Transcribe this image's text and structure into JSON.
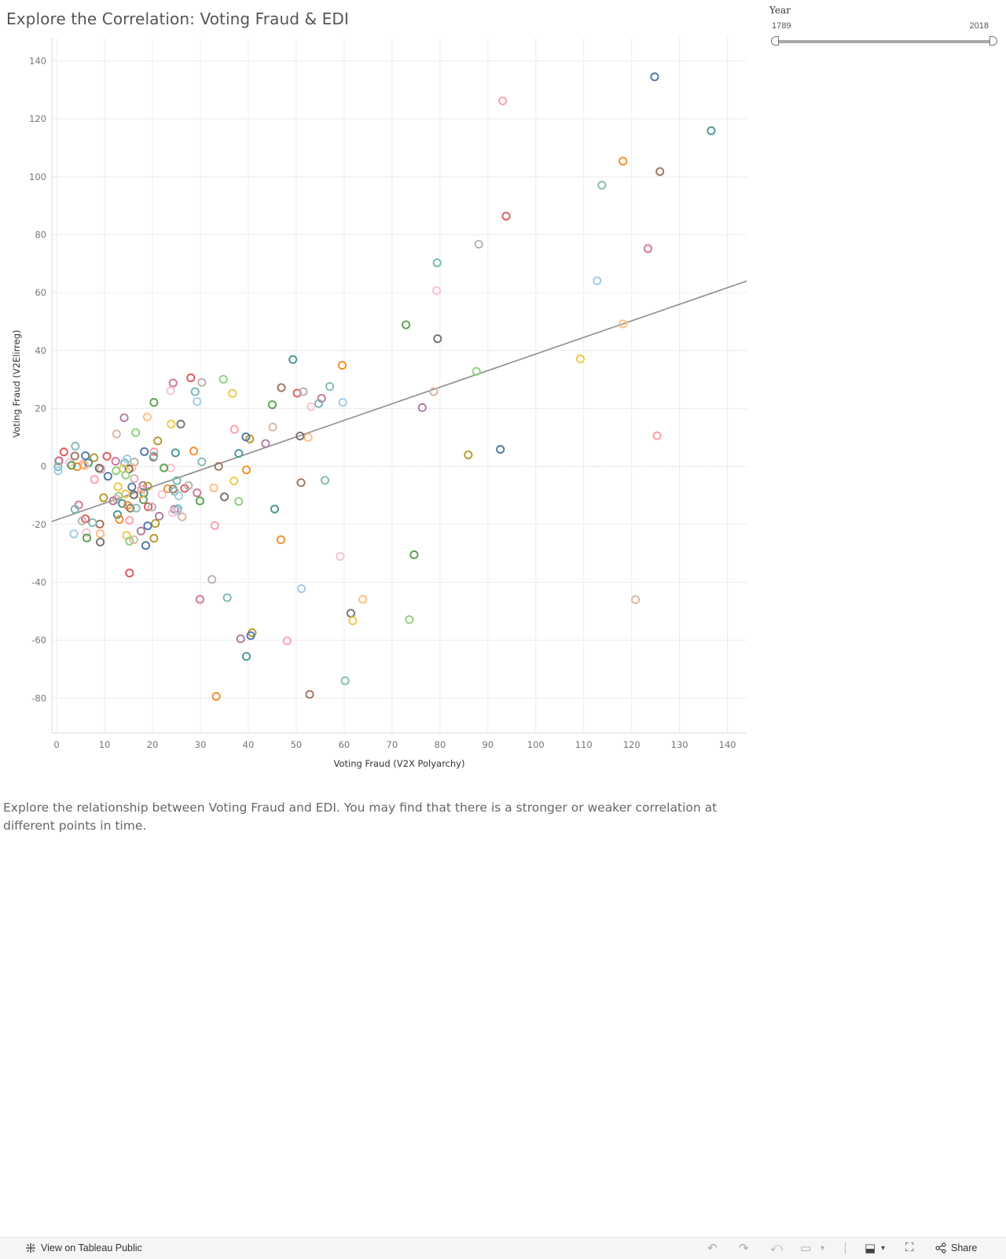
{
  "page": {
    "title": "Explore the Correlation: Voting Fraud & EDI",
    "description": "Explore the relationship between Voting Fraud and EDI. You may find that there is a stronger or weaker correlation at different points in time."
  },
  "filter": {
    "label": "Year",
    "min_label": "1789",
    "max_label": "2018",
    "range": [
      1789,
      2018
    ]
  },
  "footer": {
    "view_label": "View on Tableau Public",
    "share_label": "Share"
  },
  "chart_data": {
    "type": "scatter",
    "title": "",
    "xlabel": "Voting Fraud (V2X Polyarchy)",
    "ylabel": "Voting Fraud (V2Elirreg)",
    "xlim": [
      -1,
      144
    ],
    "ylim": [
      -92,
      148
    ],
    "xticks": [
      0,
      10,
      20,
      30,
      40,
      50,
      60,
      70,
      80,
      90,
      100,
      110,
      120,
      130,
      140
    ],
    "yticks": [
      -80,
      -60,
      -40,
      -20,
      0,
      20,
      40,
      60,
      80,
      100,
      120,
      140
    ],
    "grid": true,
    "zero_line": true,
    "trend_line": {
      "x": [
        -1,
        144
      ],
      "y": [
        -19,
        64
      ]
    },
    "palette": [
      "#4e79a7",
      "#f28e2b",
      "#e15759",
      "#76b7b2",
      "#59a14f",
      "#edc948",
      "#b07aa1",
      "#ff9da7",
      "#9c755f",
      "#bab0ac",
      "#a0cbe8",
      "#ffbe7d",
      "#8cd17d",
      "#b6992d",
      "#499894",
      "#86bcb6",
      "#d37295",
      "#fabfd2",
      "#79706e",
      "#d7b5a6"
    ],
    "points": [
      [
        124.8,
        134.5
      ],
      [
        93.1,
        126.2
      ],
      [
        136.6,
        115.9
      ],
      [
        118.2,
        105.4
      ],
      [
        125.9,
        101.8
      ],
      [
        113.8,
        97.1
      ],
      [
        93.8,
        86.4
      ],
      [
        88.1,
        76.7
      ],
      [
        123.4,
        75.2
      ],
      [
        79.4,
        70.3
      ],
      [
        112.8,
        64.1
      ],
      [
        79.3,
        60.7
      ],
      [
        72.9,
        48.9
      ],
      [
        118.2,
        49.2
      ],
      [
        79.5,
        44.1
      ],
      [
        109.3,
        37.1
      ],
      [
        87.6,
        32.8
      ],
      [
        78.7,
        25.8
      ],
      [
        76.3,
        20.3
      ],
      [
        85.9,
        4.0
      ],
      [
        92.6,
        5.9
      ],
      [
        125.3,
        10.6
      ],
      [
        49.3,
        36.9
      ],
      [
        59.6,
        34.9
      ],
      [
        46.9,
        27.2
      ],
      [
        57.0,
        27.6
      ],
      [
        50.2,
        25.3
      ],
      [
        51.5,
        25.8
      ],
      [
        55.3,
        23.5
      ],
      [
        54.7,
        21.7
      ],
      [
        59.7,
        22.1
      ],
      [
        53.1,
        20.6
      ],
      [
        45.0,
        21.3
      ],
      [
        52.5,
        10.0
      ],
      [
        50.8,
        10.5
      ],
      [
        36.7,
        25.2
      ],
      [
        34.8,
        30.1
      ],
      [
        45.1,
        13.6
      ],
      [
        43.6,
        7.9
      ],
      [
        40.3,
        9.5
      ],
      [
        39.5,
        10.2
      ],
      [
        37.1,
        12.8
      ],
      [
        38.0,
        4.5
      ],
      [
        39.6,
        -1.2
      ],
      [
        33.8,
        0.0
      ],
      [
        30.3,
        1.6
      ],
      [
        28.0,
        30.6
      ],
      [
        30.3,
        29.0
      ],
      [
        24.3,
        28.8
      ],
      [
        28.9,
        25.8
      ],
      [
        29.3,
        22.4
      ],
      [
        23.8,
        26.1
      ],
      [
        20.3,
        22.1
      ],
      [
        18.9,
        17.1
      ],
      [
        25.9,
        14.6
      ],
      [
        23.9,
        14.6
      ],
      [
        16.5,
        11.7
      ],
      [
        12.5,
        11.2
      ],
      [
        14.1,
        16.8
      ],
      [
        21.1,
        8.8
      ],
      [
        18.3,
        5.1
      ],
      [
        20.3,
        5.0
      ],
      [
        24.8,
        4.7
      ],
      [
        28.6,
        5.3
      ],
      [
        20.2,
        3.2
      ],
      [
        20.3,
        3.6
      ],
      [
        10.5,
        3.5
      ],
      [
        16.2,
        1.5
      ],
      [
        12.3,
        1.8
      ],
      [
        14.2,
        1.2
      ],
      [
        14.7,
        2.6
      ],
      [
        23.8,
        -0.5
      ],
      [
        22.4,
        -0.5
      ],
      [
        15.7,
        -0.4
      ],
      [
        15.1,
        -0.9
      ],
      [
        13.9,
        -0.8
      ],
      [
        12.4,
        -1.5
      ],
      [
        9.3,
        -1.0
      ],
      [
        8.9,
        -0.7
      ],
      [
        7.8,
        3.0
      ],
      [
        6.0,
        3.7
      ],
      [
        5.5,
        0.7
      ],
      [
        6.6,
        1.2
      ],
      [
        4.3,
        -0.1
      ],
      [
        3.8,
        3.6
      ],
      [
        3.9,
        7.0
      ],
      [
        1.5,
        5.0
      ],
      [
        0.4,
        1.8
      ],
      [
        0.5,
        2.0
      ],
      [
        0.3,
        -0.1
      ],
      [
        0.3,
        -1.5
      ],
      [
        2.7,
        1.3
      ],
      [
        3.1,
        0.4
      ],
      [
        5.9,
        0.3
      ],
      [
        8.9,
        -0.6
      ],
      [
        12.8,
        -7.0
      ],
      [
        14.4,
        -3.0
      ],
      [
        16.2,
        -4.2
      ],
      [
        18.0,
        -6.6
      ],
      [
        19.0,
        -6.8
      ],
      [
        15.7,
        -7.1
      ],
      [
        17.7,
        -7.9
      ],
      [
        18.2,
        -9.2
      ],
      [
        23.2,
        -7.7
      ],
      [
        24.3,
        -7.8
      ],
      [
        24.6,
        -8.6
      ],
      [
        26.7,
        -7.6
      ],
      [
        27.5,
        -6.6
      ],
      [
        29.3,
        -9.1
      ],
      [
        25.1,
        -4.9
      ],
      [
        25.5,
        -10.2
      ],
      [
        22.0,
        -9.7
      ],
      [
        18.1,
        -11.5
      ],
      [
        17.5,
        -9.7
      ],
      [
        16.1,
        -9.8
      ],
      [
        14.4,
        -9.5
      ],
      [
        12.9,
        -10.3
      ],
      [
        12.5,
        -11.3
      ],
      [
        11.8,
        -11.9
      ],
      [
        9.8,
        -10.8
      ],
      [
        10.7,
        -3.4
      ],
      [
        7.9,
        -4.5
      ],
      [
        13.7,
        -12.8
      ],
      [
        14.8,
        -13.4
      ],
      [
        15.4,
        -14.4
      ],
      [
        16.6,
        -14.4
      ],
      [
        19.1,
        -13.9
      ],
      [
        19.9,
        -14.0
      ],
      [
        24.6,
        -14.8
      ],
      [
        25.3,
        -14.6
      ],
      [
        25.2,
        -15.3
      ],
      [
        24.2,
        -15.9
      ],
      [
        29.9,
        -11.9
      ],
      [
        32.8,
        -7.4
      ],
      [
        35.0,
        -10.5
      ],
      [
        37.0,
        -5.0
      ],
      [
        38.0,
        -12.1
      ],
      [
        26.2,
        -17.4
      ],
      [
        21.4,
        -17.2
      ],
      [
        20.6,
        -19.7
      ],
      [
        19.0,
        -20.5
      ],
      [
        15.2,
        -18.6
      ],
      [
        12.7,
        -16.6
      ],
      [
        13.1,
        -18.3
      ],
      [
        9.0,
        -19.9
      ],
      [
        7.5,
        -19.4
      ],
      [
        6.0,
        -18.1
      ],
      [
        5.3,
        -18.8
      ],
      [
        4.6,
        -13.3
      ],
      [
        3.8,
        -14.8
      ],
      [
        3.6,
        -23.3
      ],
      [
        6.2,
        -22.8
      ],
      [
        6.3,
        -24.7
      ],
      [
        9.1,
        -23.2
      ],
      [
        9.1,
        -26.1
      ],
      [
        14.6,
        -23.8
      ],
      [
        15.2,
        -25.8
      ],
      [
        16.1,
        -25.3
      ],
      [
        17.6,
        -22.3
      ],
      [
        20.3,
        -24.8
      ],
      [
        18.6,
        -27.3
      ],
      [
        33.0,
        -20.4
      ],
      [
        45.5,
        -14.7
      ],
      [
        46.8,
        -25.3
      ],
      [
        51.0,
        -5.6
      ],
      [
        56.0,
        -4.8
      ],
      [
        15.2,
        -36.8
      ],
      [
        32.4,
        -39.0
      ],
      [
        29.9,
        -45.9
      ],
      [
        35.6,
        -45.3
      ],
      [
        51.1,
        -42.2
      ],
      [
        59.2,
        -31.1
      ],
      [
        74.6,
        -30.5
      ],
      [
        63.9,
        -45.9
      ],
      [
        61.4,
        -50.7
      ],
      [
        61.8,
        -53.3
      ],
      [
        73.6,
        -52.9
      ],
      [
        120.8,
        -46.0
      ],
      [
        38.4,
        -59.5
      ],
      [
        40.8,
        -57.4
      ],
      [
        40.5,
        -58.4
      ],
      [
        48.1,
        -60.2
      ],
      [
        39.6,
        -65.6
      ],
      [
        33.3,
        -79.4
      ],
      [
        52.8,
        -78.7
      ],
      [
        60.2,
        -74.0
      ]
    ]
  }
}
